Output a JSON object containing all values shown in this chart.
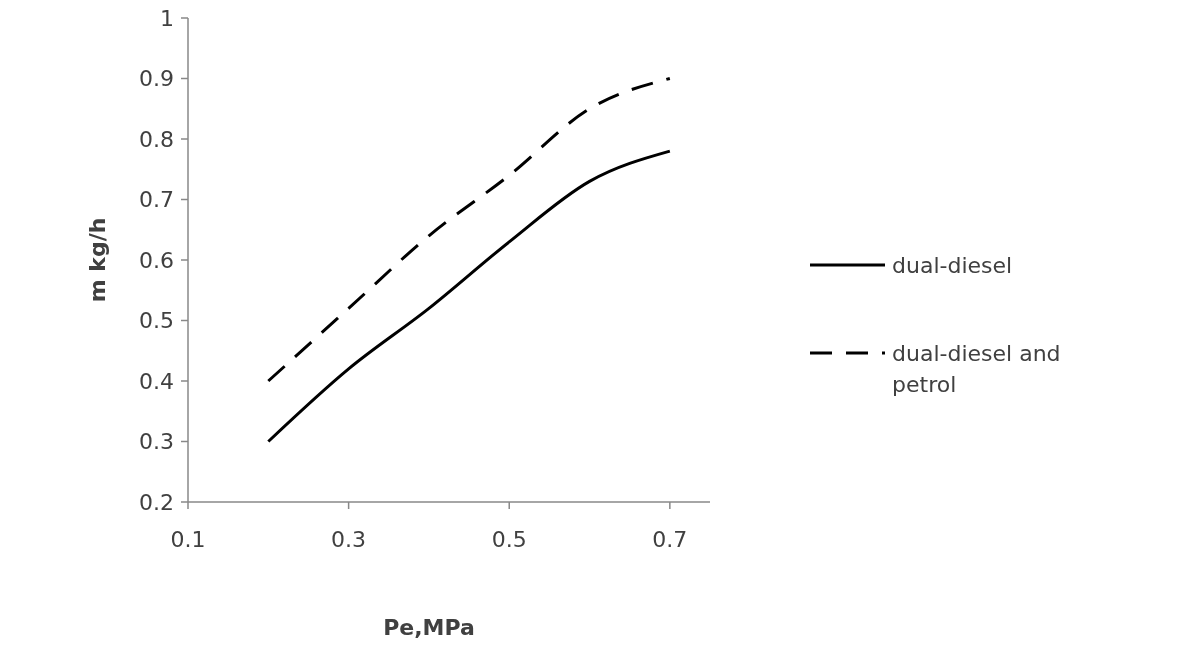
{
  "chart_data": {
    "type": "line",
    "xlabel": "Pe,MPa",
    "ylabel": "m kg/h",
    "x": [
      0.2,
      0.3,
      0.4,
      0.5,
      0.6,
      0.7
    ],
    "series": [
      {
        "name": "dual-diesel",
        "color": "#000000",
        "line_style": "solid",
        "values": [
          0.3,
          0.42,
          0.52,
          0.63,
          0.73,
          0.78
        ]
      },
      {
        "name": "dual-diesel and petrol",
        "color": "#000000",
        "line_style": "dashed",
        "values": [
          0.4,
          0.52,
          0.64,
          0.74,
          0.85,
          0.9
        ]
      }
    ],
    "xlim": [
      0.1,
      0.75
    ],
    "ylim": [
      0.2,
      1
    ],
    "xticks": [
      0.1,
      0.3,
      0.5,
      0.7
    ],
    "yticks": [
      0.2,
      0.3,
      0.4,
      0.5,
      0.6,
      0.7,
      0.8,
      0.9,
      1
    ],
    "grid": false,
    "legend": "right",
    "marker": "none"
  }
}
